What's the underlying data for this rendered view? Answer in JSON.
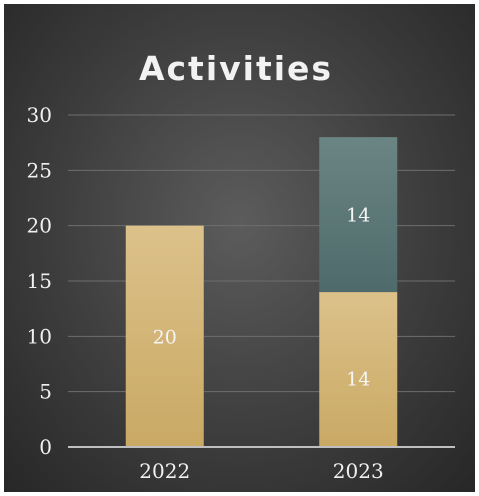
{
  "chart_data": {
    "type": "bar",
    "stacked": true,
    "title": "Activities",
    "xlabel": "",
    "ylabel": "",
    "categories": [
      "2022",
      "2023"
    ],
    "series": [
      {
        "values": [
          20,
          14
        ],
        "color": "#d4b678",
        "labels": [
          "20",
          "14"
        ]
      },
      {
        "values": [
          0,
          14
        ],
        "color": "#5a7373",
        "labels": [
          "",
          "14"
        ]
      }
    ],
    "ylim": [
      0,
      30
    ],
    "yticks": [
      "0",
      "5",
      "10",
      "15",
      "20",
      "25",
      "30"
    ],
    "grid": true,
    "legend": "none"
  }
}
